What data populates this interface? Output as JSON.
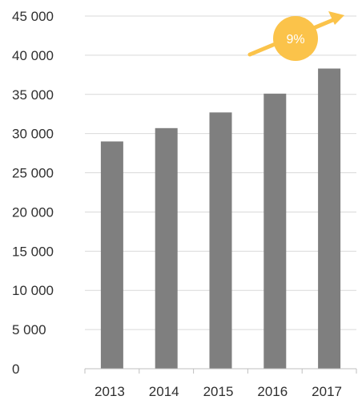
{
  "chart_data": {
    "type": "bar",
    "categories": [
      "2013",
      "2014",
      "2015",
      "2016",
      "2017"
    ],
    "values": [
      29000,
      30700,
      32700,
      35100,
      38300
    ],
    "ylim": [
      0,
      45000
    ],
    "y_ticks": [
      0,
      5000,
      10000,
      15000,
      20000,
      25000,
      30000,
      35000,
      40000,
      45000
    ],
    "y_tick_labels": [
      "0",
      "5 000",
      "10 000",
      "15 000",
      "20 000",
      "25 000",
      "30 000",
      "35 000",
      "40 000",
      "45 000"
    ],
    "grid": true,
    "annotation": {
      "label": "9%",
      "description": "growth arrow"
    }
  },
  "colors": {
    "bar": "#7f7f7f",
    "grid": "#d9d9d9",
    "axis": "#bfbfbf",
    "accent": "#fbc34a",
    "text": "#2f2f2f"
  },
  "icons": {
    "growth_arrow": "arrow-up-right-icon"
  }
}
